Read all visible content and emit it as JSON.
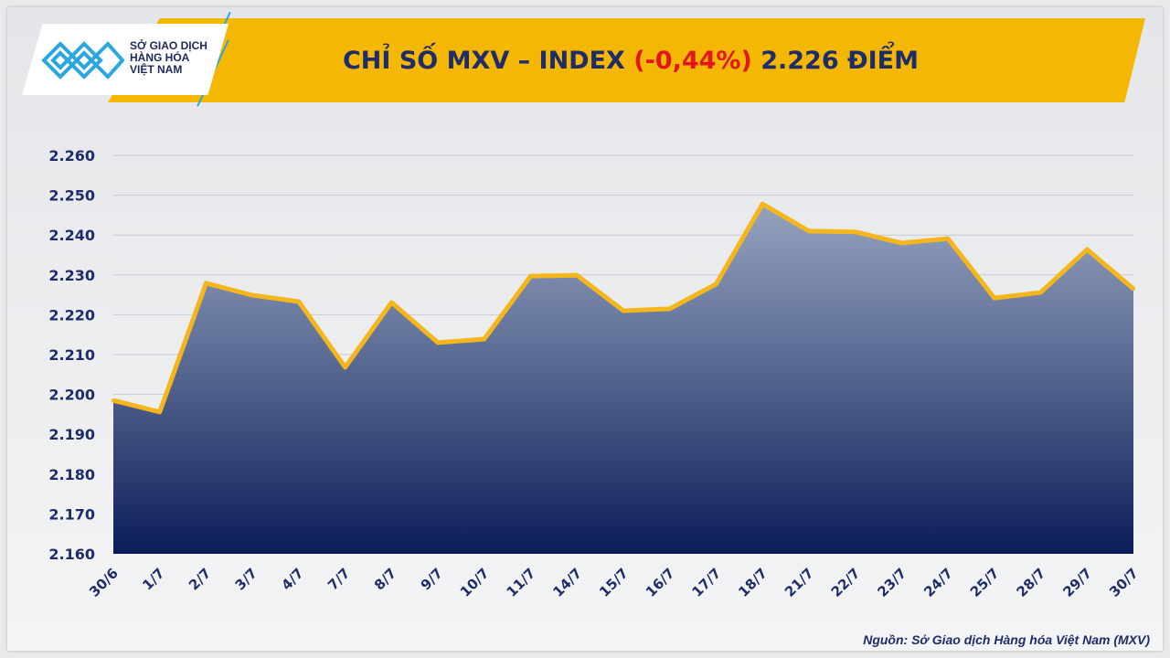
{
  "header": {
    "title_prefix": "CHỈ SỐ MXV – INDEX ",
    "title_change": "(-0,44%)",
    "title_suffix": " 2.226 ĐIỂM"
  },
  "logo": {
    "line1": "SỞ GIAO DỊCH",
    "line2": "HÀNG HÓA",
    "line3": "VIỆT NAM"
  },
  "source": "Nguồn: Sở Giao dịch Hàng hóa Việt Nam (MXV)",
  "colors": {
    "banner": "#f3b704",
    "line": "#f5b61c",
    "fill_top": "#8b9bb9",
    "fill_bottom": "#0a1c58",
    "title": "#1e2c6a",
    "change": "#e3161b"
  },
  "chart_data": {
    "type": "area",
    "title": "CHỈ SỐ MXV – INDEX (-0,44%) 2.226 ĐIỂM",
    "categories": [
      "30/6",
      "1/7",
      "2/7",
      "3/7",
      "4/7",
      "7/7",
      "8/7",
      "9/7",
      "10/7",
      "11/7",
      "14/7",
      "15/7",
      "16/7",
      "17/7",
      "18/7",
      "21/7",
      "22/7",
      "23/7",
      "24/7",
      "25/7",
      "28/7",
      "29/7",
      "30/7"
    ],
    "values": [
      2198.5,
      2195.6,
      2227.9,
      2224.9,
      2223.3,
      2206.8,
      2223.1,
      2213.0,
      2213.9,
      2229.7,
      2229.9,
      2221.0,
      2221.5,
      2227.7,
      2247.8,
      2241.0,
      2240.8,
      2238.0,
      2239.1,
      2224.2,
      2225.6,
      2236.4,
      2226.5
    ],
    "y_ticks": [
      "2.160",
      "2.170",
      "2.180",
      "2.190",
      "2.200",
      "2.210",
      "2.220",
      "2.230",
      "2.240",
      "2.250",
      "2.260"
    ],
    "ylim": [
      2160,
      2260
    ],
    "grid": true
  }
}
